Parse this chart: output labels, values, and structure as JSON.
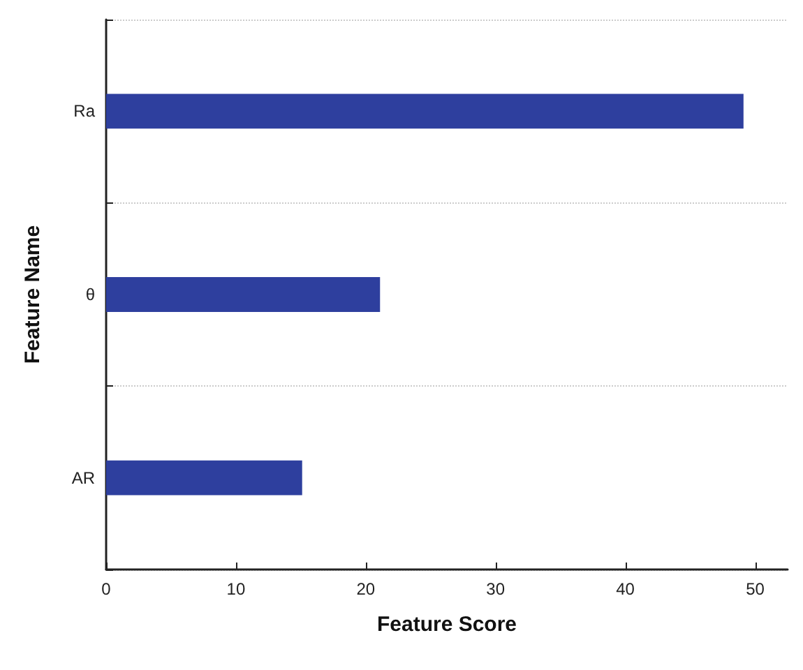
{
  "chart_data": {
    "type": "bar",
    "orientation": "horizontal",
    "xlabel": "Feature Score",
    "ylabel": "Feature Name",
    "categories": [
      "Ra",
      "θ",
      "AR"
    ],
    "values": [
      49.1,
      21.1,
      15.1
    ],
    "color": "#2e3f9e",
    "xlim": [
      0,
      52.5
    ],
    "xticks": [
      0,
      10,
      20,
      30,
      40,
      50
    ],
    "grid": "y"
  }
}
